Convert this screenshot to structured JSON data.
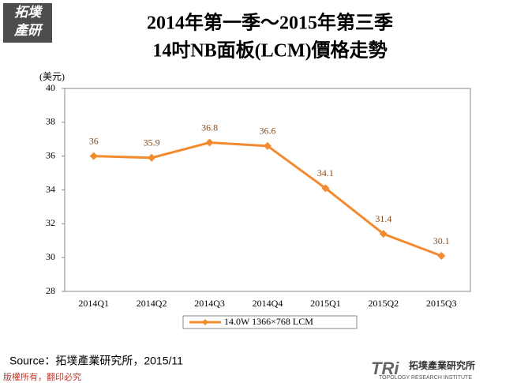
{
  "chart_data": {
    "type": "line",
    "title": "2014年第一季～2015年第三季",
    "subtitle": "14吋NB面板(LCM)價格走勢",
    "y_label": "(美元)",
    "categories": [
      "2014Q1",
      "2014Q2",
      "2014Q3",
      "2014Q4",
      "2015Q1",
      "2015Q2",
      "2015Q3"
    ],
    "series": [
      {
        "name": "14.0W 1366×768 LCM",
        "color": "#f28a30",
        "values": [
          36,
          35.9,
          36.8,
          36.6,
          34.1,
          31.4,
          30.1
        ]
      }
    ],
    "ylim": [
      28,
      40
    ],
    "yticks": [
      28,
      30,
      32,
      34,
      36,
      38,
      40
    ],
    "grid": false,
    "legend": "bottom"
  },
  "source": "Source：拓墣產業研究所，2015/11",
  "logo": {
    "line1": "拓墣",
    "line2": "產研"
  },
  "footer": {
    "copyright": "版權所有，翻印必究",
    "mark": "TRi",
    "brand": "拓墣產業研究所",
    "brand_en": "TOPOLOGY RESEARCH INSTITUTE"
  }
}
